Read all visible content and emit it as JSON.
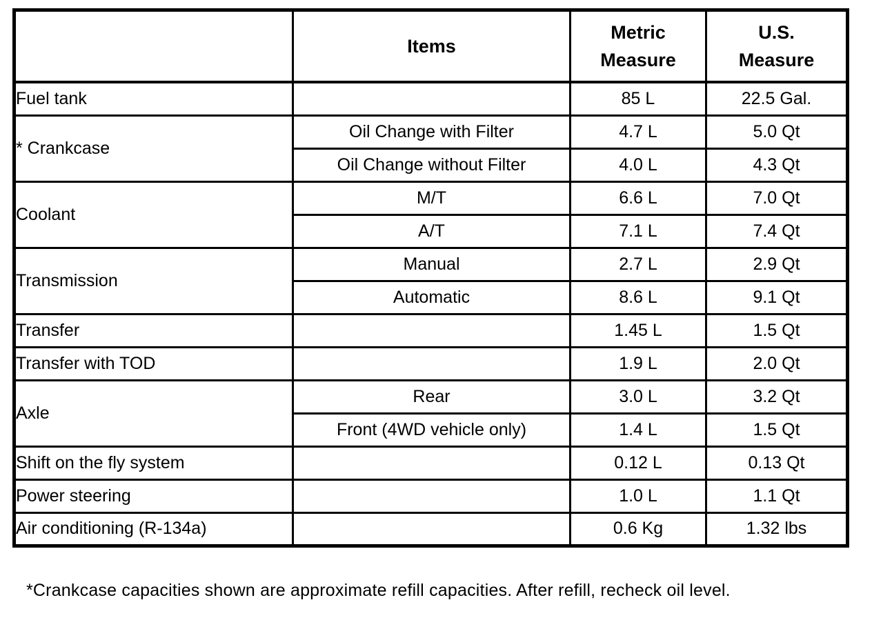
{
  "table": {
    "headers": {
      "category": "",
      "items": "Items",
      "metric": "Metric Measure",
      "us": "U.S. Measure"
    },
    "groups": [
      {
        "category": "Fuel tank",
        "rows": [
          {
            "item": "",
            "metric": "85 L",
            "us": "22.5 Gal."
          }
        ]
      },
      {
        "category": "* Crankcase",
        "rows": [
          {
            "item": "Oil Change with Filter",
            "metric": "4.7 L",
            "us": "5.0 Qt"
          },
          {
            "item": "Oil Change without Filter",
            "metric": "4.0 L",
            "us": "4.3 Qt"
          }
        ]
      },
      {
        "category": "Coolant",
        "rows": [
          {
            "item": "M/T",
            "metric": "6.6 L",
            "us": "7.0 Qt"
          },
          {
            "item": "A/T",
            "metric": "7.1 L",
            "us": "7.4 Qt"
          }
        ]
      },
      {
        "category": "Transmission",
        "rows": [
          {
            "item": "Manual",
            "metric": "2.7 L",
            "us": "2.9 Qt"
          },
          {
            "item": "Automatic",
            "metric": "8.6 L",
            "us": "9.1 Qt"
          }
        ]
      },
      {
        "category": "Transfer",
        "rows": [
          {
            "item": "",
            "metric": "1.45 L",
            "us": "1.5 Qt"
          }
        ]
      },
      {
        "category": "Transfer with TOD",
        "rows": [
          {
            "item": "",
            "metric": "1.9 L",
            "us": "2.0 Qt"
          }
        ]
      },
      {
        "category": "Axle",
        "rows": [
          {
            "item": "Rear",
            "metric": "3.0 L",
            "us": "3.2 Qt"
          },
          {
            "item": "Front (4WD vehicle only)",
            "metric": "1.4 L",
            "us": "1.5 Qt"
          }
        ]
      },
      {
        "category": "Shift on the fly system",
        "rows": [
          {
            "item": "",
            "metric": "0.12 L",
            "us": "0.13 Qt"
          }
        ]
      },
      {
        "category": "Power steering",
        "rows": [
          {
            "item": "",
            "metric": "1.0 L",
            "us": "1.1 Qt"
          }
        ]
      },
      {
        "category": "Air conditioning (R-134a)",
        "rows": [
          {
            "item": "",
            "metric": "0.6 Kg",
            "us": "1.32 lbs"
          }
        ]
      }
    ]
  },
  "footnote": "*Crankcase capacities shown are approximate refill capacities. After refill, recheck oil level."
}
